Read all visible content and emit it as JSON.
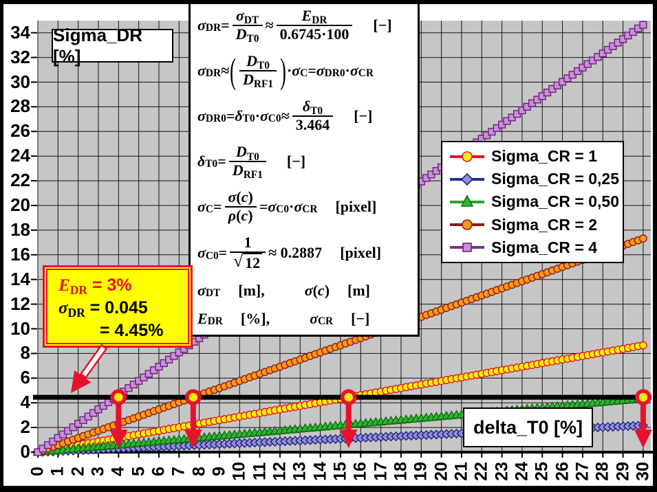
{
  "plot": {
    "bg_color": "#C6C6C6",
    "grid_color": "#111111",
    "title_y": "Sigma_DR [%]",
    "title_x": "delta_T0 [%]"
  },
  "y_axis": {
    "ticks": [
      34,
      32,
      30,
      28,
      26,
      24,
      22,
      20,
      18,
      16,
      14,
      12,
      10,
      8,
      6,
      4,
      2,
      0
    ]
  },
  "x_axis": {
    "ticks": [
      0,
      1,
      2,
      3,
      4,
      5,
      6,
      7,
      8,
      9,
      10,
      11,
      12,
      13,
      14,
      15,
      16,
      17,
      18,
      19,
      20,
      21,
      22,
      23,
      24,
      25,
      26,
      27,
      28,
      29,
      30
    ]
  },
  "annotation": {
    "rows": [
      [
        {
          "v": "E",
          "c": "i"
        },
        {
          "v": "DR",
          "c": "sub"
        },
        {
          "v": " = 3%",
          "c": "r"
        }
      ],
      [
        {
          "v": "σ",
          "c": "i"
        },
        {
          "v": "DR",
          "c": "sub"
        },
        {
          "v": " = 0.045",
          "c": "r"
        }
      ],
      [
        {
          "v": "= 4.45%",
          "c": "r"
        }
      ]
    ],
    "accent_color": "#E8112D",
    "fill_color": "#FFFF00"
  },
  "formulas": [
    [
      {
        "v": "σ",
        "c": "i"
      },
      {
        "v": "DR",
        "c": "sub"
      },
      {
        "v": " = ",
        "c": "r"
      },
      {
        "f": {
          "n": [
            {
              "v": "σ",
              "c": "i"
            },
            {
              "v": "DT",
              "c": "sub"
            }
          ],
          "d": [
            {
              "v": "D",
              "c": "i"
            },
            {
              "v": "T0",
              "c": "sub"
            }
          ]
        }
      },
      {
        "v": " ≈ ",
        "c": "r"
      },
      {
        "f": {
          "n": [
            {
              "v": "E",
              "c": "i"
            },
            {
              "v": "DR",
              "c": "sub"
            }
          ],
          "d": [
            {
              "v": "0.6745·100",
              "c": "r"
            }
          ]
        }
      },
      {
        "v": "[−]",
        "c": "u"
      }
    ],
    [
      {
        "v": "σ",
        "c": "i"
      },
      {
        "v": "DR",
        "c": "sub"
      },
      {
        "v": " ≈ ",
        "c": "r"
      },
      {
        "p": [
          {
            "f": {
              "n": [
                {
                  "v": "D",
                  "c": "i"
                },
                {
                  "v": "T0",
                  "c": "sub"
                }
              ],
              "d": [
                {
                  "v": "D",
                  "c": "i"
                },
                {
                  "v": "RF1",
                  "c": "sub"
                }
              ]
            }
          }
        ]
      },
      {
        "v": " · ",
        "c": "r"
      },
      {
        "v": "σ",
        "c": "i"
      },
      {
        "v": "C",
        "c": "sub"
      },
      {
        "v": " = ",
        "c": "r"
      },
      {
        "v": "σ",
        "c": "i"
      },
      {
        "v": "DR0",
        "c": "sub"
      },
      {
        "v": " · ",
        "c": "r"
      },
      {
        "v": "σ",
        "c": "i"
      },
      {
        "v": "CR",
        "c": "sub"
      }
    ],
    [
      {
        "v": "σ",
        "c": "i"
      },
      {
        "v": "DR0",
        "c": "sub"
      },
      {
        "v": " = ",
        "c": "r"
      },
      {
        "v": "δ",
        "c": "i"
      },
      {
        "v": "T0",
        "c": "sub"
      },
      {
        "v": " · ",
        "c": "r"
      },
      {
        "v": "σ",
        "c": "i"
      },
      {
        "v": "C0",
        "c": "sub"
      },
      {
        "v": " ≈ ",
        "c": "r"
      },
      {
        "f": {
          "n": [
            {
              "v": "δ",
              "c": "i"
            },
            {
              "v": "T0",
              "c": "sub"
            }
          ],
          "d": [
            {
              "v": "3.464",
              "c": "r"
            }
          ]
        }
      },
      {
        "v": "[−]",
        "c": "u"
      }
    ],
    [
      {
        "v": "δ",
        "c": "i"
      },
      {
        "v": "T0",
        "c": "sub"
      },
      {
        "v": " = ",
        "c": "r"
      },
      {
        "f": {
          "n": [
            {
              "v": "D",
              "c": "i"
            },
            {
              "v": "T0",
              "c": "sub"
            }
          ],
          "d": [
            {
              "v": "D",
              "c": "i"
            },
            {
              "v": "RF1",
              "c": "sub"
            }
          ]
        }
      },
      {
        "v": "[−]",
        "c": "u"
      }
    ],
    [
      {
        "v": "σ",
        "c": "i"
      },
      {
        "v": "C",
        "c": "sub"
      },
      {
        "v": " = ",
        "c": "r"
      },
      {
        "f": {
          "n": [
            {
              "v": "σ",
              "c": "i"
            },
            {
              "v": "(",
              "c": "r"
            },
            {
              "v": "c",
              "c": "i"
            },
            {
              "v": ")",
              "c": "r"
            }
          ],
          "d": [
            {
              "v": "ρ",
              "c": "i"
            },
            {
              "v": "(",
              "c": "r"
            },
            {
              "v": "c",
              "c": "i"
            },
            {
              "v": ")",
              "c": "r"
            }
          ]
        }
      },
      {
        "v": " = ",
        "c": "r"
      },
      {
        "v": "σ",
        "c": "i"
      },
      {
        "v": "C0",
        "c": "sub"
      },
      {
        "v": " · ",
        "c": "r"
      },
      {
        "v": "σ",
        "c": "i"
      },
      {
        "v": "CR",
        "c": "sub"
      },
      {
        "v": "[pixel]",
        "c": "u"
      }
    ],
    [
      {
        "v": "σ",
        "c": "i"
      },
      {
        "v": "C0",
        "c": "sub"
      },
      {
        "v": " = ",
        "c": "r"
      },
      {
        "f": {
          "n": [
            {
              "v": "1",
              "c": "r"
            }
          ],
          "d": [
            {
              "q": [
                {
                  "v": "12",
                  "c": "r"
                }
              ]
            }
          ]
        }
      },
      {
        "v": " ≈ 0.2887",
        "c": "r"
      },
      {
        "v": "[pixel]",
        "c": "u"
      }
    ],
    [
      {
        "v": "σ",
        "c": "i"
      },
      {
        "v": "DT",
        "c": "sub"
      },
      {
        "c": "gap"
      },
      {
        "v": "[m],",
        "c": "r"
      },
      {
        "c": "gap2"
      },
      {
        "v": "σ",
        "c": "i"
      },
      {
        "v": "(",
        "c": "r"
      },
      {
        "v": "c",
        "c": "i"
      },
      {
        "v": ")",
        "c": "r"
      },
      {
        "c": "gap"
      },
      {
        "v": "[m]",
        "c": "r"
      }
    ],
    [
      {
        "v": "E",
        "c": "i"
      },
      {
        "v": "DR",
        "c": "sub"
      },
      {
        "c": "gap"
      },
      {
        "v": "[%],",
        "c": "r"
      },
      {
        "c": "gap2"
      },
      {
        "v": "σ",
        "c": "i"
      },
      {
        "v": "CR",
        "c": "sub"
      },
      {
        "c": "gap"
      },
      {
        "v": "[−]",
        "c": "r"
      }
    ]
  ],
  "chart_data": {
    "type": "line",
    "x_label": "delta_T0 [%]",
    "y_label": "Sigma_DR [%]",
    "x_range": [
      0,
      30
    ],
    "x_step": 0.25,
    "y_range": [
      0,
      34.97
    ],
    "grid": {
      "x_interval": 1,
      "y_interval": 2,
      "grid_on": true
    },
    "relation": "Sigma_DR = (delta_T0 / 3.464) * Sigma_CR",
    "series": [
      {
        "label": "Sigma_CR = 1",
        "sigma_cr": 1,
        "slope": 0.2887,
        "line_color": "#E8112D",
        "line_width": 2.5,
        "marker": {
          "shape": "circle",
          "fill": "#FFF200",
          "stroke": "#E8112D"
        }
      },
      {
        "label": "Sigma_CR = 0,25",
        "sigma_cr": 0.25,
        "slope": 0.0722,
        "line_color": "#1F2F8F",
        "line_width": 2,
        "marker": {
          "shape": "diamond",
          "fill": "#9090D8",
          "stroke": "#1F1F78"
        }
      },
      {
        "label": "Sigma_CR = 0,50",
        "sigma_cr": 0.5,
        "slope": 0.1443,
        "line_color": "#2CA02C",
        "line_width": 3,
        "marker": {
          "shape": "triangle",
          "fill": "#2DB52D",
          "stroke": "#156815"
        }
      },
      {
        "label": "Sigma_CR = 2",
        "sigma_cr": 2,
        "slope": 0.5774,
        "line_color": "#8B1A1A",
        "line_width": 2.5,
        "marker": {
          "shape": "circle",
          "fill": "#FF9912",
          "stroke": "#8B1A1A"
        }
      },
      {
        "label": "Sigma_CR = 4",
        "sigma_cr": 4,
        "slope": 1.1547,
        "line_color": "#7B2D8B",
        "line_width": 2.5,
        "marker": {
          "shape": "square",
          "fill": "#C98FD8",
          "stroke": "#6A1F7A"
        }
      }
    ],
    "reference_line": {
      "y": 4.45,
      "color": "#000000"
    },
    "intersection_marks": {
      "y": 4.45,
      "x": [
        4,
        7.7,
        15.4,
        30
      ],
      "marker_color": "#F7EA00",
      "ring_color": "#E8112D"
    }
  }
}
